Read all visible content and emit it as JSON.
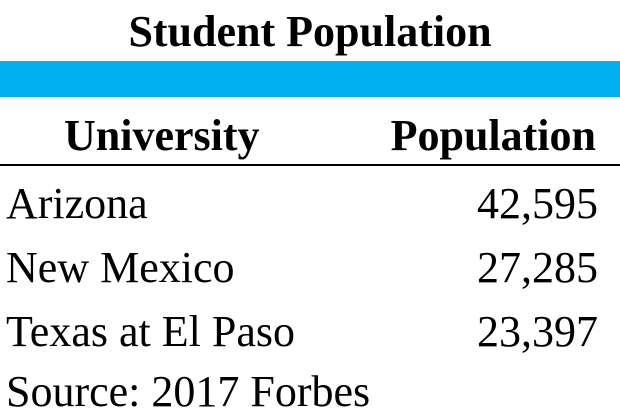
{
  "table": {
    "title": "Student Population",
    "band_color": "#00b0f0",
    "headers": {
      "university": "University",
      "population": "Population"
    },
    "rows": [
      {
        "university": "Arizona",
        "population": "42,595"
      },
      {
        "university": "New Mexico",
        "population": "27,285"
      },
      {
        "university": "Texas at El Paso",
        "population": "23,397"
      }
    ],
    "source": "Source: 2017 Forbes"
  }
}
